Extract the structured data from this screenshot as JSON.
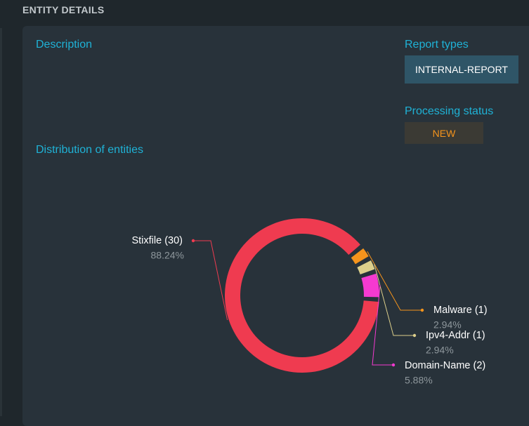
{
  "section_title": "ENTITY DETAILS",
  "description_label": "Description",
  "report_types_label": "Report types",
  "report_type_value": "INTERNAL-REPORT",
  "processing_status_label": "Processing status",
  "processing_status_value": "NEW",
  "distribution_label": "Distribution of entities",
  "colors": {
    "accent": "#1fb2d6",
    "stixfile": "#ef3b50",
    "malware": "#f5941c",
    "ipv4": "#dccf8b",
    "domain": "#f53ad0"
  },
  "chart_data": {
    "type": "pie",
    "title": "Distribution of entities",
    "series": [
      {
        "name": "Stixfile",
        "label": "Stixfile (30)",
        "value": 30,
        "percent": "88.24%"
      },
      {
        "name": "Malware",
        "label": "Malware (1)",
        "value": 1,
        "percent": "2.94%"
      },
      {
        "name": "Ipv4-Addr",
        "label": "Ipv4-Addr (1)",
        "value": 1,
        "percent": "2.94%"
      },
      {
        "name": "Domain-Name",
        "label": "Domain-Name (2)",
        "value": 2,
        "percent": "5.88%"
      }
    ]
  }
}
